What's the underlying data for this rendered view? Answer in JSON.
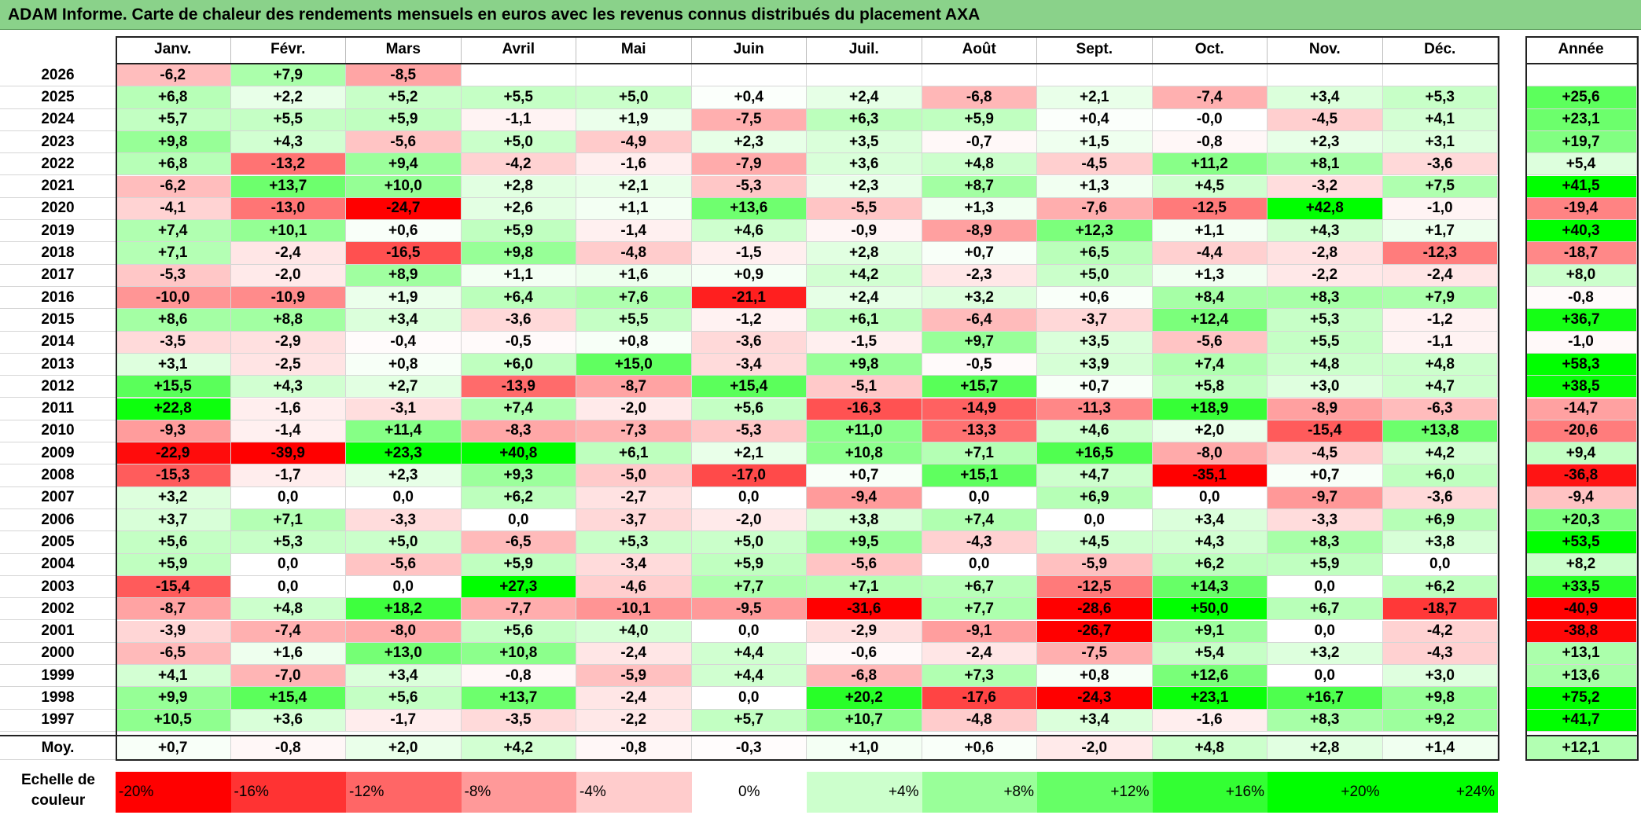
{
  "title": "ADAM Informe. Carte de chaleur des rendements mensuels en euros avec les revenus connus distribués du placement AXA",
  "chart_data": {
    "type": "heatmap",
    "title": "ADAM Informe. Carte de chaleur des rendements mensuels en euros avec les revenus connus distribués du placement AXA",
    "columns": [
      "Janv.",
      "Févr.",
      "Mars",
      "Avril",
      "Mai",
      "Juin",
      "Juil.",
      "Août",
      "Sept.",
      "Oct.",
      "Nov.",
      "Déc."
    ],
    "annual_label": "Année",
    "rows": [
      {
        "year": "2026",
        "values": [
          "-6,2",
          "+7,9",
          "-8,5",
          "",
          "",
          "",
          "",
          "",
          "",
          "",
          "",
          ""
        ],
        "annual": ""
      },
      {
        "year": "2025",
        "values": [
          "+6,8",
          "+2,2",
          "+5,2",
          "+5,5",
          "+5,0",
          "+0,4",
          "+2,4",
          "-6,8",
          "+2,1",
          "-7,4",
          "+3,4",
          "+5,3"
        ],
        "annual": "+25,6"
      },
      {
        "year": "2024",
        "values": [
          "+5,7",
          "+5,5",
          "+5,9",
          "-1,1",
          "+1,9",
          "-7,5",
          "+6,3",
          "+5,9",
          "+0,4",
          "-0,0",
          "-4,5",
          "+4,1"
        ],
        "annual": "+23,1"
      },
      {
        "year": "2023",
        "values": [
          "+9,8",
          "+4,3",
          "-5,6",
          "+5,0",
          "-4,9",
          "+2,3",
          "+3,5",
          "-0,7",
          "+1,5",
          "-0,8",
          "+2,3",
          "+3,1"
        ],
        "annual": "+19,7"
      },
      {
        "year": "2022",
        "values": [
          "+6,8",
          "-13,2",
          "+9,4",
          "-4,2",
          "-1,6",
          "-7,9",
          "+3,6",
          "+4,8",
          "-4,5",
          "+11,2",
          "+8,1",
          "-3,6"
        ],
        "annual": "+5,4"
      },
      {
        "year": "2021",
        "values": [
          "-6,2",
          "+13,7",
          "+10,0",
          "+2,8",
          "+2,1",
          "-5,3",
          "+2,3",
          "+8,7",
          "+1,3",
          "+4,5",
          "-3,2",
          "+7,5"
        ],
        "annual": "+41,5"
      },
      {
        "year": "2020",
        "values": [
          "-4,1",
          "-13,0",
          "-24,7",
          "+2,6",
          "+1,1",
          "+13,6",
          "-5,5",
          "+1,3",
          "-7,6",
          "-12,5",
          "+42,8",
          "-1,0"
        ],
        "annual": "-19,4"
      },
      {
        "year": "2019",
        "values": [
          "+7,4",
          "+10,1",
          "+0,6",
          "+5,9",
          "-1,4",
          "+4,6",
          "-0,9",
          "-8,9",
          "+12,3",
          "+1,1",
          "+4,3",
          "+1,7"
        ],
        "annual": "+40,3"
      },
      {
        "year": "2018",
        "values": [
          "+7,1",
          "-2,4",
          "-16,5",
          "+9,8",
          "-4,8",
          "-1,5",
          "+2,8",
          "+0,7",
          "+6,5",
          "-4,4",
          "-2,8",
          "-12,3"
        ],
        "annual": "-18,7"
      },
      {
        "year": "2017",
        "values": [
          "-5,3",
          "-2,0",
          "+8,9",
          "+1,1",
          "+1,6",
          "+0,9",
          "+4,2",
          "-2,3",
          "+5,0",
          "+1,3",
          "-2,2",
          "-2,4"
        ],
        "annual": "+8,0"
      },
      {
        "year": "2016",
        "values": [
          "-10,0",
          "-10,9",
          "+1,9",
          "+6,4",
          "+7,6",
          "-21,1",
          "+2,4",
          "+3,2",
          "+0,6",
          "+8,4",
          "+8,3",
          "+7,9"
        ],
        "annual": "-0,8"
      },
      {
        "year": "2015",
        "values": [
          "+8,6",
          "+8,8",
          "+3,4",
          "-3,6",
          "+5,5",
          "-1,2",
          "+6,1",
          "-6,4",
          "-3,7",
          "+12,4",
          "+5,3",
          "-1,2"
        ],
        "annual": "+36,7"
      },
      {
        "year": "2014",
        "values": [
          "-3,5",
          "-2,9",
          "-0,4",
          "-0,5",
          "+0,8",
          "-3,6",
          "-1,5",
          "+9,7",
          "+3,5",
          "-5,6",
          "+5,5",
          "-1,1"
        ],
        "annual": "-1,0"
      },
      {
        "year": "2013",
        "values": [
          "+3,1",
          "-2,5",
          "+0,8",
          "+6,0",
          "+15,0",
          "-3,4",
          "+9,8",
          "-0,5",
          "+3,9",
          "+7,4",
          "+4,8",
          "+4,8"
        ],
        "annual": "+58,3"
      },
      {
        "year": "2012",
        "values": [
          "+15,5",
          "+4,3",
          "+2,7",
          "-13,9",
          "-8,7",
          "+15,4",
          "-5,1",
          "+15,7",
          "+0,7",
          "+5,8",
          "+3,0",
          "+4,7"
        ],
        "annual": "+38,5"
      },
      {
        "year": "2011",
        "values": [
          "+22,8",
          "-1,6",
          "-3,1",
          "+7,4",
          "-2,0",
          "+5,6",
          "-16,3",
          "-14,9",
          "-11,3",
          "+18,9",
          "-8,9",
          "-6,3"
        ],
        "annual": "-14,7"
      },
      {
        "year": "2010",
        "values": [
          "-9,3",
          "-1,4",
          "+11,4",
          "-8,3",
          "-7,3",
          "-5,3",
          "+11,0",
          "-13,3",
          "+4,6",
          "+2,0",
          "-15,4",
          "+13,8"
        ],
        "annual": "-20,6"
      },
      {
        "year": "2009",
        "values": [
          "-22,9",
          "-39,9",
          "+23,3",
          "+40,8",
          "+6,1",
          "+2,1",
          "+10,8",
          "+7,1",
          "+16,5",
          "-8,0",
          "-4,5",
          "+4,2"
        ],
        "annual": "+9,4"
      },
      {
        "year": "2008",
        "values": [
          "-15,3",
          "-1,7",
          "+2,3",
          "+9,3",
          "-5,0",
          "-17,0",
          "+0,7",
          "+15,1",
          "+4,7",
          "-35,1",
          "+0,7",
          "+6,0"
        ],
        "annual": "-36,8"
      },
      {
        "year": "2007",
        "values": [
          "+3,2",
          "0,0",
          "0,0",
          "+6,2",
          "-2,7",
          "0,0",
          "-9,4",
          "0,0",
          "+6,9",
          "0,0",
          "-9,7",
          "-3,6"
        ],
        "annual": "-9,4"
      },
      {
        "year": "2006",
        "values": [
          "+3,7",
          "+7,1",
          "-3,3",
          "0,0",
          "-3,7",
          "-2,0",
          "+3,8",
          "+7,4",
          "0,0",
          "+3,4",
          "-3,3",
          "+6,9"
        ],
        "annual": "+20,3"
      },
      {
        "year": "2005",
        "values": [
          "+5,6",
          "+5,3",
          "+5,0",
          "-6,5",
          "+5,3",
          "+5,0",
          "+9,5",
          "-4,3",
          "+4,5",
          "+4,3",
          "+8,3",
          "+3,8"
        ],
        "annual": "+53,5"
      },
      {
        "year": "2004",
        "values": [
          "+5,9",
          "0,0",
          "-5,6",
          "+5,9",
          "-3,4",
          "+5,9",
          "-5,6",
          "0,0",
          "-5,9",
          "+6,2",
          "+5,9",
          "0,0"
        ],
        "annual": "+8,2"
      },
      {
        "year": "2003",
        "values": [
          "-15,4",
          "0,0",
          "0,0",
          "+27,3",
          "-4,6",
          "+7,7",
          "+7,1",
          "+6,7",
          "-12,5",
          "+14,3",
          "0,0",
          "+6,2"
        ],
        "annual": "+33,5"
      },
      {
        "year": "2002",
        "values": [
          "-8,7",
          "+4,8",
          "+18,2",
          "-7,7",
          "-10,1",
          "-9,5",
          "-31,6",
          "+7,7",
          "-28,6",
          "+50,0",
          "+6,7",
          "-18,7"
        ],
        "annual": "-40,9"
      },
      {
        "year": "2001",
        "values": [
          "-3,9",
          "-7,4",
          "-8,0",
          "+5,6",
          "+4,0",
          "0,0",
          "-2,9",
          "-9,1",
          "-26,7",
          "+9,1",
          "0,0",
          "-4,2"
        ],
        "annual": "-38,8"
      },
      {
        "year": "2000",
        "values": [
          "-6,5",
          "+1,6",
          "+13,0",
          "+10,8",
          "-2,4",
          "+4,4",
          "-0,6",
          "-2,4",
          "-7,5",
          "+5,4",
          "+3,2",
          "-4,3"
        ],
        "annual": "+13,1"
      },
      {
        "year": "1999",
        "values": [
          "+4,1",
          "-7,0",
          "+3,4",
          "-0,8",
          "-5,9",
          "+4,4",
          "-6,8",
          "+7,3",
          "+0,8",
          "+12,6",
          "0,0",
          "+3,0"
        ],
        "annual": "+13,6"
      },
      {
        "year": "1998",
        "values": [
          "+9,9",
          "+15,4",
          "+5,6",
          "+13,7",
          "-2,4",
          "0,0",
          "+20,2",
          "-17,6",
          "-24,3",
          "+23,1",
          "+16,7",
          "+9,8"
        ],
        "annual": "+75,2"
      },
      {
        "year": "1997",
        "values": [
          "+10,5",
          "+3,6",
          "-1,7",
          "-3,5",
          "-2,2",
          "+5,7",
          "+10,7",
          "-4,8",
          "+3,4",
          "-1,6",
          "+8,3",
          "+9,2"
        ],
        "annual": "+41,7"
      }
    ],
    "average": {
      "label": "Moy.",
      "values": [
        "+0,7",
        "-0,8",
        "+2,0",
        "+4,2",
        "-0,8",
        "-0,3",
        "+1,0",
        "+0,6",
        "-2,0",
        "+4,8",
        "+2,8",
        "+1,4"
      ],
      "annual": "+12,1"
    },
    "scale": {
      "label_line1": "Echelle de",
      "label_line2": "couleur",
      "steps": [
        {
          "label": "-20%",
          "value": -20
        },
        {
          "label": "-16%",
          "value": -16
        },
        {
          "label": "-12%",
          "value": -12
        },
        {
          "label": "-8%",
          "value": -8
        },
        {
          "label": "-4%",
          "value": -4
        },
        {
          "label": "0%",
          "value": 0
        },
        {
          "label": "+4%",
          "value": 4
        },
        {
          "label": "+8%",
          "value": 8
        },
        {
          "label": "+12%",
          "value": 12
        },
        {
          "label": "+16%",
          "value": 16
        },
        {
          "label": "+20%",
          "value": 20
        },
        {
          "label": "+24%",
          "value": 24
        }
      ]
    },
    "colors": {
      "negative_max": "#ff0000",
      "neutral": "#ffffff",
      "positive_max": "#00ff00",
      "title_bg": "#8ad28a"
    }
  }
}
